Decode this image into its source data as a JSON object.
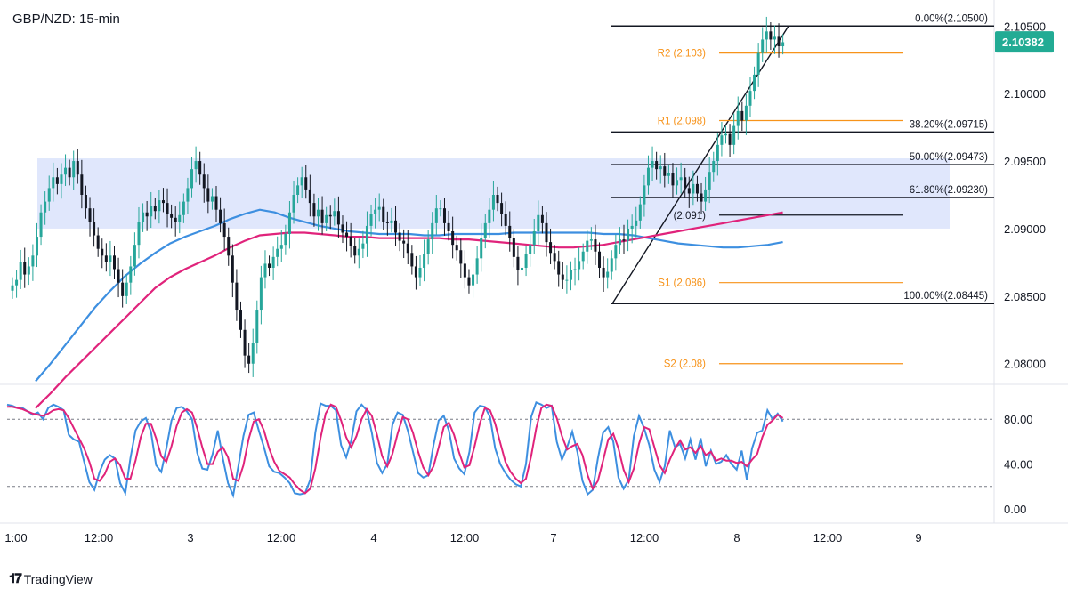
{
  "header": {
    "title": "GBP/NZD: 15-min"
  },
  "price_axis": {
    "ticks": [
      "2.10500",
      "2.10000",
      "2.09500",
      "2.09000",
      "2.08500",
      "2.08000"
    ],
    "current_price": "2.10382",
    "current_price_color": "#22ab94"
  },
  "osc_axis": {
    "ticks": [
      "80.00",
      "40.00",
      "0.00"
    ]
  },
  "time_axis": {
    "ticks": [
      "1:00",
      "12:00",
      "3",
      "12:00",
      "4",
      "12:00",
      "7",
      "12:00",
      "8",
      "12:00",
      "9"
    ]
  },
  "fib_levels": [
    {
      "label": "0.00%(2.10500)",
      "value": 2.105
    },
    {
      "label": "38.20%(2.09715)",
      "value": 2.09715
    },
    {
      "label": "50.00%(2.09473)",
      "value": 2.09473
    },
    {
      "label": "61.80%(2.09230)",
      "value": 2.0923
    },
    {
      "label": "100.00%(2.08445)",
      "value": 2.08445
    }
  ],
  "pivot_levels": [
    {
      "label": "R2 (2.103)",
      "value": 2.103,
      "color": "#f7931a"
    },
    {
      "label": "R1 (2.098)",
      "value": 2.098,
      "color": "#f7931a"
    },
    {
      "label": "(2.091)",
      "value": 2.091,
      "color": "#131722"
    },
    {
      "label": "S1 (2.086)",
      "value": 2.086,
      "color": "#f7931a"
    },
    {
      "label": "S2 (2.08)",
      "value": 2.08,
      "color": "#f7931a"
    }
  ],
  "range_zone": {
    "low": 2.09,
    "high": 2.0952,
    "color": "#dbe3fb"
  },
  "colors": {
    "up": "#26a69a",
    "down": "#131722",
    "sma_fast": "#3d8fe0",
    "sma_slow": "#e0237b",
    "stoch_k": "#3d8fe0",
    "stoch_d": "#e0237b"
  },
  "branding": {
    "name": "TradingView"
  },
  "chart_data": {
    "type": "candlestick",
    "title": "GBP/NZD: 15-min",
    "ylim": [
      2.0786,
      2.1064
    ],
    "close": [
      2.0858,
      2.0862,
      2.0875,
      2.0866,
      2.0872,
      2.088,
      2.0894,
      2.0912,
      2.092,
      2.093,
      2.0938,
      2.0933,
      2.094,
      2.0945,
      2.0938,
      2.095,
      2.094,
      2.0925,
      2.0915,
      2.0905,
      2.0895,
      2.0885,
      2.088,
      2.0875,
      2.088,
      2.087,
      2.086,
      2.085,
      2.086,
      2.0872,
      2.0888,
      2.0905,
      2.0912,
      2.0909,
      2.0917,
      2.0913,
      2.0921,
      2.0919,
      2.0911,
      2.0908,
      2.0905,
      2.091,
      2.092,
      2.093,
      2.0944,
      2.095,
      2.094,
      2.093,
      2.092,
      2.0924,
      2.0914,
      2.0904,
      2.0894,
      2.088,
      2.086,
      2.084,
      2.0825,
      2.0806,
      2.08,
      2.0815,
      2.084,
      2.0864,
      2.0874,
      2.0871,
      2.0879,
      2.0885,
      2.0888,
      2.0896,
      2.0912,
      2.0925,
      2.0932,
      2.0938,
      2.0929,
      2.0919,
      2.0909,
      2.0914,
      2.0904,
      2.091,
      2.0909,
      2.0913,
      2.0903,
      2.0897,
      2.0894,
      2.0887,
      2.088,
      2.0885,
      2.0889,
      2.0902,
      2.0911,
      2.0914,
      2.0916,
      2.0905,
      2.0904,
      2.0906,
      2.0897,
      2.0891,
      2.0889,
      2.0882,
      2.0872,
      2.0864,
      2.0871,
      2.0881,
      2.0892,
      2.0904,
      2.0915,
      2.0915,
      2.0904,
      2.0898,
      2.0888,
      2.0884,
      2.0874,
      2.0864,
      2.0858,
      2.0866,
      2.0878,
      2.0893,
      2.0904,
      2.0914,
      2.0925,
      2.0919,
      2.0911,
      2.0902,
      2.0893,
      2.0879,
      2.0869,
      2.0871,
      2.0881,
      2.0888,
      2.0898,
      2.091,
      2.0904,
      2.089,
      2.0882,
      2.0876,
      2.0866,
      2.0862,
      2.0862,
      2.0869,
      2.087,
      2.0876,
      2.0883,
      2.0891,
      2.0892,
      2.0883,
      2.0871,
      2.0864,
      2.0868,
      2.0878,
      2.0888,
      2.0892,
      2.0891,
      2.09,
      2.0902,
      2.0906,
      2.0918,
      2.0932,
      2.0945,
      2.095,
      2.0944,
      2.0946,
      2.0939,
      2.0941,
      2.0932,
      2.0936,
      2.0938,
      2.093,
      2.0926,
      2.0933,
      2.0926,
      2.092,
      2.0929,
      2.0942,
      2.095,
      2.0962,
      2.0969,
      2.097,
      2.0962,
      2.0976,
      2.0987,
      2.098,
      2.0991,
      2.1002,
      2.1014,
      2.103,
      2.104,
      2.1046,
      2.104,
      2.1042,
      2.1035,
      2.1038
    ],
    "sma_fast": [
      2.0787,
      2.08,
      2.0814,
      2.0828,
      2.0842,
      2.0854,
      2.0865,
      2.0874,
      2.0882,
      2.0889,
      2.0894,
      2.0898,
      2.0902,
      2.0907,
      2.0911,
      2.0914,
      2.0912,
      2.0908,
      2.0905,
      2.0902,
      2.09,
      2.0898,
      2.0897,
      2.0896,
      2.0896,
      2.0896,
      2.0895,
      2.0895,
      2.0896,
      2.0896,
      2.0896,
      2.0896,
      2.0897,
      2.0897,
      2.0897,
      2.0897,
      2.0897,
      2.0897,
      2.0896,
      2.0896,
      2.0895,
      2.0893,
      2.0891,
      2.0889,
      2.0888,
      2.0887,
      2.0886,
      2.0886,
      2.0887,
      2.0888,
      2.089
    ],
    "sma_slow": [
      2.0767,
      2.0778,
      2.079,
      2.0801,
      2.0812,
      2.0823,
      2.0834,
      2.0845,
      2.0856,
      2.0864,
      2.087,
      2.0875,
      2.088,
      2.0886,
      2.0891,
      2.0895,
      2.0896,
      2.0897,
      2.0897,
      2.0896,
      2.0895,
      2.0894,
      2.0894,
      2.0893,
      2.0893,
      2.0893,
      2.0893,
      2.0893,
      2.0892,
      2.0892,
      2.0891,
      2.089,
      2.0889,
      2.0888,
      2.0887,
      2.0886,
      2.0886,
      2.0887,
      2.0888,
      2.089,
      2.0892,
      2.0894,
      2.0896,
      2.0898,
      2.09,
      2.0902,
      2.0904,
      2.0906,
      2.0908,
      2.091,
      2.0912
    ],
    "stochastic_k": [
      93,
      92,
      90,
      90,
      87,
      84,
      86,
      80,
      90,
      93,
      91,
      88,
      66,
      62,
      60,
      42,
      24,
      17,
      33,
      44,
      48,
      45,
      23,
      14,
      45,
      70,
      78,
      81,
      69,
      39,
      33,
      54,
      79,
      90,
      91,
      87,
      80,
      50,
      36,
      35,
      49,
      70,
      45,
      23,
      12,
      38,
      65,
      84,
      86,
      70,
      55,
      38,
      33,
      32,
      28,
      23,
      14,
      13,
      14,
      26,
      68,
      94,
      92,
      92,
      88,
      57,
      46,
      61,
      87,
      93,
      88,
      68,
      41,
      32,
      40,
      75,
      86,
      84,
      70,
      51,
      32,
      28,
      30,
      57,
      79,
      83,
      70,
      45,
      36,
      31,
      51,
      86,
      92,
      91,
      82,
      54,
      40,
      32,
      26,
      22,
      20,
      40,
      82,
      95,
      93,
      90,
      92,
      60,
      44,
      55,
      69,
      51,
      25,
      13,
      17,
      45,
      68,
      73,
      60,
      28,
      18,
      26,
      65,
      83,
      72,
      57,
      35,
      24,
      38,
      70,
      55,
      58,
      45,
      62,
      44,
      63,
      38,
      52,
      40,
      42,
      48,
      40,
      35,
      52,
      26,
      54,
      68,
      70,
      88,
      80,
      85,
      78
    ],
    "stochastic_d": [
      91,
      91,
      90,
      89,
      87,
      85,
      84,
      83,
      85,
      88,
      89,
      88,
      81,
      72,
      63,
      54,
      42,
      27,
      25,
      31,
      42,
      45,
      39,
      27,
      27,
      43,
      64,
      76,
      76,
      63,
      47,
      42,
      56,
      74,
      86,
      89,
      86,
      72,
      55,
      40,
      40,
      51,
      55,
      46,
      27,
      25,
      39,
      62,
      78,
      80,
      70,
      54,
      42,
      34,
      31,
      28,
      22,
      17,
      14,
      18,
      36,
      63,
      85,
      93,
      91,
      79,
      64,
      55,
      65,
      80,
      89,
      83,
      66,
      47,
      38,
      49,
      67,
      82,
      80,
      68,
      51,
      37,
      30,
      38,
      55,
      73,
      77,
      66,
      50,
      37,
      39,
      56,
      76,
      90,
      88,
      76,
      59,
      42,
      33,
      27,
      23,
      27,
      47,
      72,
      90,
      93,
      92,
      81,
      65,
      53,
      56,
      58,
      48,
      30,
      18,
      25,
      43,
      62,
      67,
      54,
      35,
      24,
      36,
      58,
      73,
      71,
      55,
      39,
      32,
      44,
      54,
      61,
      53,
      55,
      50,
      56,
      48,
      51,
      43,
      45,
      43,
      43,
      41,
      42,
      38,
      44,
      49,
      64,
      75,
      79,
      84,
      81
    ],
    "x_tick_labels": [
      "1:00",
      "12:00",
      "3",
      "12:00",
      "4",
      "12:00",
      "7",
      "12:00",
      "8",
      "12:00",
      "9"
    ]
  }
}
